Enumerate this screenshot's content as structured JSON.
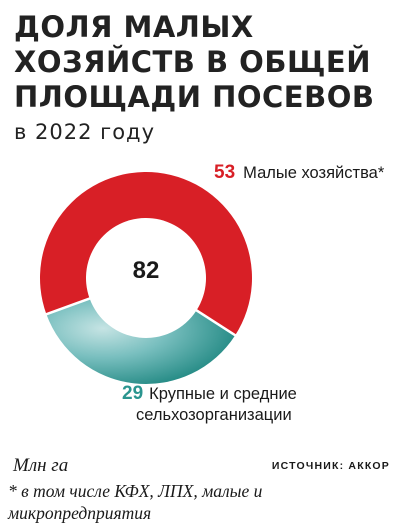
{
  "title_lines": [
    "ДОЛЯ МАЛЫХ",
    "ХОЗЯЙСТВ В ОБЩЕЙ",
    "ПЛОЩАДИ ПОСЕВОВ"
  ],
  "subtitle": "в 2022 году",
  "colors": {
    "small": "#d81f26",
    "large_stroke": "#2a958f"
  },
  "chart_data": {
    "type": "pie",
    "variant": "donut",
    "total": "82",
    "slices": [
      {
        "label": "Малые хозяйства*",
        "value": 53,
        "color": "#d81f26"
      },
      {
        "label": "Крупные и средние сельхозорганизации",
        "value": 29,
        "color": "#2a958f"
      }
    ]
  },
  "labels": {
    "small_value": "53",
    "small_text": "Малые хозяйства*",
    "large_value": "29",
    "large_text_1": "Крупные и средние",
    "large_text_2": "сельхозорганизации"
  },
  "unit": "Млн га",
  "source": "ИСТОЧНИК: АККОР",
  "footnote": "* в том числе КФХ, ЛПХ, малые и микропредприятия"
}
